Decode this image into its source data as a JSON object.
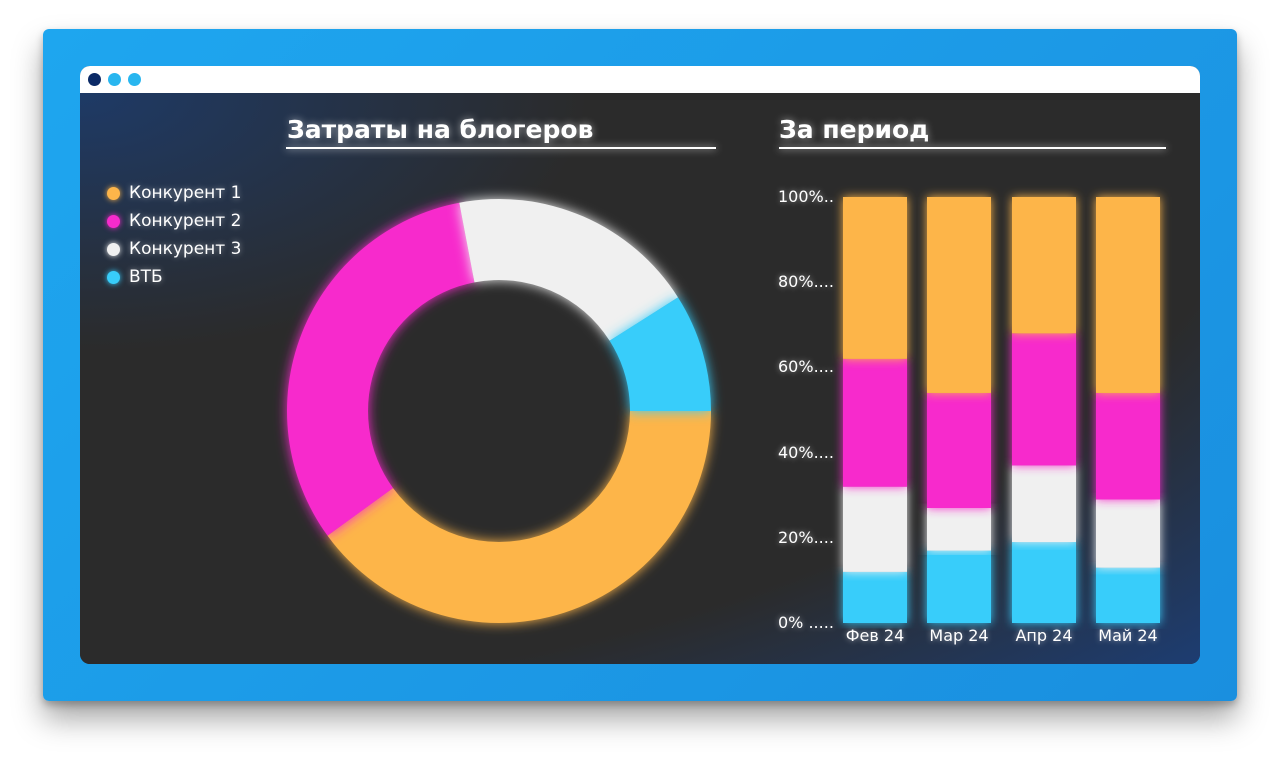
{
  "window": {
    "dots": [
      "#0b2a66",
      "#29b6ef",
      "#29b6ef"
    ]
  },
  "donut": {
    "heading": "Затраты на блогеров"
  },
  "bars": {
    "heading": "За период"
  },
  "colors": {
    "frame": "#1a9be8",
    "background": "#2b2b2b",
    "series": [
      "#fdb54a",
      "#f72bcc",
      "#f0f0f0",
      "#38cdfa"
    ]
  },
  "chart_data": [
    {
      "type": "pie",
      "title": "Затраты на блогеров",
      "donut": true,
      "legend_position": "left",
      "labels": [
        "Конкурент 1",
        "Конкурент 2",
        "Конкурент 3",
        "ВТБ"
      ],
      "values": [
        40,
        32,
        19,
        9
      ]
    },
    {
      "type": "bar",
      "stacked": true,
      "title": "За период",
      "categories": [
        "Фев 24",
        "Мар 24",
        "Апр 24",
        "Май 24"
      ],
      "ylim": [
        0,
        100
      ],
      "yticks": [
        "0% .....",
        "20%....",
        "40%....",
        "60%....",
        "80%....",
        "100%.."
      ],
      "series": [
        {
          "name": "ВТБ",
          "values": [
            12,
            17,
            19,
            13
          ]
        },
        {
          "name": "Конкурент 3",
          "values": [
            20,
            10,
            18,
            16
          ]
        },
        {
          "name": "Конкурент 2",
          "values": [
            30,
            27,
            31,
            25
          ]
        },
        {
          "name": "Конкурент 1",
          "values": [
            38,
            46,
            32,
            46
          ]
        }
      ]
    }
  ]
}
